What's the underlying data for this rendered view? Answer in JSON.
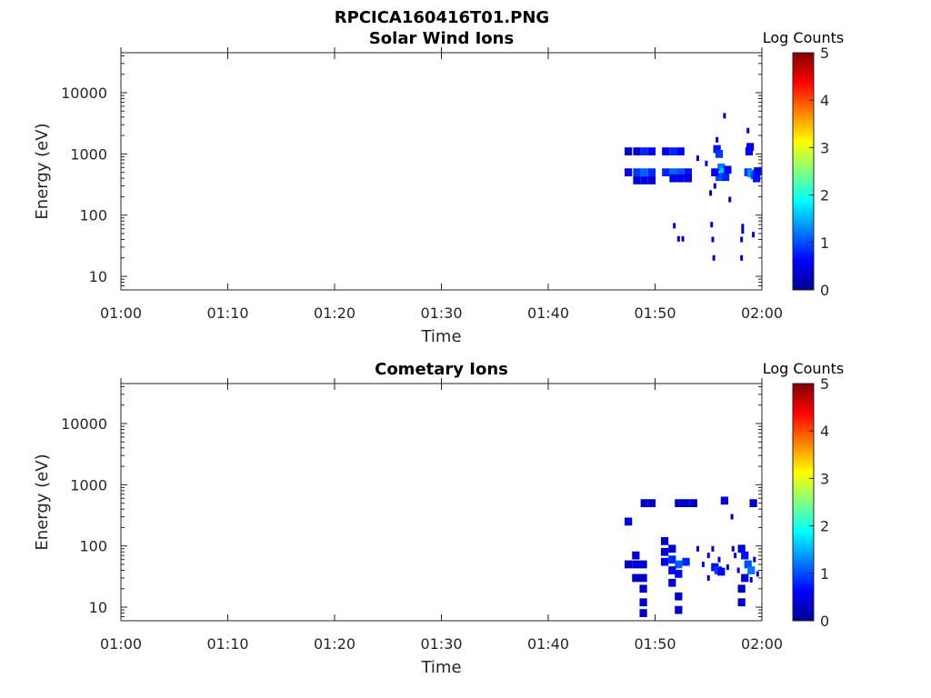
{
  "figure_title": "RPCICA160416T01.PNG",
  "colormap": [
    "#00008f",
    "#0000ff",
    "#0080ff",
    "#00ffff",
    "#80ff80",
    "#ffff00",
    "#ff8000",
    "#ff0000",
    "#800000"
  ],
  "chart_data": [
    {
      "type": "heatmap",
      "title": "Solar Wind Ions",
      "xlabel": "Time",
      "ylabel": "Energy (eV)",
      "x_ticks": [
        "01:00",
        "01:10",
        "01:20",
        "01:30",
        "01:40",
        "01:50",
        "02:00"
      ],
      "xlim": [
        "01:00",
        "02:00"
      ],
      "y_scale": "log",
      "ylim": [
        6,
        45000
      ],
      "y_ticks": [
        "10",
        "100",
        "1000",
        "10000"
      ],
      "colorbar": {
        "label": "Log Counts",
        "range": [
          0,
          5
        ],
        "ticks": [
          "0",
          "1",
          "2",
          "3",
          "4",
          "5"
        ]
      },
      "cells": [
        {
          "t": "01:47.5",
          "e": 1100,
          "v": 0.4
        },
        {
          "t": "01:48.3",
          "e": 1100,
          "v": 0.4
        },
        {
          "t": "01:49.0",
          "e": 1100,
          "v": 0.8
        },
        {
          "t": "01:49.7",
          "e": 1100,
          "v": 0.6
        },
        {
          "t": "01:47.5",
          "e": 500,
          "v": 0.6
        },
        {
          "t": "01:48.3",
          "e": 500,
          "v": 0.9
        },
        {
          "t": "01:49.0",
          "e": 500,
          "v": 1.1
        },
        {
          "t": "01:49.7",
          "e": 500,
          "v": 0.8
        },
        {
          "t": "01:48.3",
          "e": 370,
          "v": 0.4
        },
        {
          "t": "01:49.0",
          "e": 370,
          "v": 0.5
        },
        {
          "t": "01:49.7",
          "e": 370,
          "v": 0.4
        },
        {
          "t": "01:51.0",
          "e": 1100,
          "v": 0.6
        },
        {
          "t": "01:51.7",
          "e": 1100,
          "v": 0.8
        },
        {
          "t": "01:52.4",
          "e": 1100,
          "v": 0.6
        },
        {
          "t": "01:51.0",
          "e": 500,
          "v": 0.8
        },
        {
          "t": "01:51.7",
          "e": 500,
          "v": 1.1
        },
        {
          "t": "01:52.4",
          "e": 500,
          "v": 1.0
        },
        {
          "t": "01:53.1",
          "e": 500,
          "v": 0.7
        },
        {
          "t": "01:51.7",
          "e": 400,
          "v": 0.5
        },
        {
          "t": "01:52.4",
          "e": 400,
          "v": 0.5
        },
        {
          "t": "01:53.1",
          "e": 400,
          "v": 0.4
        },
        {
          "t": "01:55.8",
          "e": 1200,
          "v": 0.7
        },
        {
          "t": "01:56.0",
          "e": 1000,
          "v": 0.9
        },
        {
          "t": "01:56.2",
          "e": 600,
          "v": 1.2
        },
        {
          "t": "01:56.4",
          "e": 500,
          "v": 1.6
        },
        {
          "t": "01:56.0",
          "e": 420,
          "v": 1.0
        },
        {
          "t": "01:56.6",
          "e": 420,
          "v": 0.8
        },
        {
          "t": "01:55.6",
          "e": 500,
          "v": 0.5
        },
        {
          "t": "01:56.8",
          "e": 550,
          "v": 0.6
        },
        {
          "t": "01:58.8",
          "e": 1100,
          "v": 0.6
        },
        {
          "t": "01:58.9",
          "e": 1300,
          "v": 0.5
        },
        {
          "t": "01:58.7",
          "e": 500,
          "v": 0.9
        },
        {
          "t": "01:59.0",
          "e": 480,
          "v": 1.4
        },
        {
          "t": "01:59.3",
          "e": 450,
          "v": 1.0
        },
        {
          "t": "01:59.5",
          "e": 400,
          "v": 0.7
        },
        {
          "t": "01:59.6",
          "e": 520,
          "v": 0.6
        }
      ],
      "scatter": [
        {
          "t": "01:56.5",
          "e": 4200,
          "v": 0.3
        },
        {
          "t": "01:58.7",
          "e": 2400,
          "v": 0.3
        },
        {
          "t": "01:55.8",
          "e": 1700,
          "v": 0.3
        },
        {
          "t": "01:54.0",
          "e": 850,
          "v": 0.3
        },
        {
          "t": "01:54.8",
          "e": 700,
          "v": 0.3
        },
        {
          "t": "01:55.2",
          "e": 230,
          "v": 0.3
        },
        {
          "t": "01:57.0",
          "e": 180,
          "v": 0.3
        },
        {
          "t": "01:55.6",
          "e": 300,
          "v": 0.3
        },
        {
          "t": "01:51.8",
          "e": 67,
          "v": 0.4
        },
        {
          "t": "01:55.3",
          "e": 70,
          "v": 0.3
        },
        {
          "t": "01:52.2",
          "e": 41,
          "v": 0.3
        },
        {
          "t": "01:52.6",
          "e": 41,
          "v": 0.3
        },
        {
          "t": "01:55.4",
          "e": 40,
          "v": 0.3
        },
        {
          "t": "01:55.5",
          "e": 20,
          "v": 0.3
        },
        {
          "t": "01:58.2",
          "e": 65,
          "v": 0.3
        },
        {
          "t": "01:58.2",
          "e": 55,
          "v": 0.3
        },
        {
          "t": "01:58.1",
          "e": 40,
          "v": 0.3
        },
        {
          "t": "01:59.2",
          "e": 48,
          "v": 0.3
        },
        {
          "t": "01:58.1",
          "e": 20,
          "v": 0.3
        }
      ]
    },
    {
      "type": "heatmap",
      "title": "Cometary Ions",
      "xlabel": "Time",
      "ylabel": "Energy (eV)",
      "x_ticks": [
        "01:00",
        "01:10",
        "01:20",
        "01:30",
        "01:40",
        "01:50",
        "02:00"
      ],
      "xlim": [
        "01:00",
        "02:00"
      ],
      "y_scale": "log",
      "ylim": [
        6,
        45000
      ],
      "y_ticks": [
        "10",
        "100",
        "1000",
        "10000"
      ],
      "colorbar": {
        "label": "Log Counts",
        "range": [
          0,
          5
        ],
        "ticks": [
          "0",
          "1",
          "2",
          "3",
          "4",
          "5"
        ]
      },
      "cells": [
        {
          "t": "01:49.0",
          "e": 500,
          "v": 0.3
        },
        {
          "t": "01:49.7",
          "e": 500,
          "v": 0.3
        },
        {
          "t": "01:52.2",
          "e": 500,
          "v": 0.3
        },
        {
          "t": "01:52.9",
          "e": 500,
          "v": 0.3
        },
        {
          "t": "01:53.6",
          "e": 500,
          "v": 0.3
        },
        {
          "t": "01:56.5",
          "e": 550,
          "v": 0.4
        },
        {
          "t": "01:59.2",
          "e": 500,
          "v": 0.3
        },
        {
          "t": "01:47.5",
          "e": 250,
          "v": 0.4
        },
        {
          "t": "01:47.5",
          "e": 50,
          "v": 0.3
        },
        {
          "t": "01:48.2",
          "e": 50,
          "v": 0.4
        },
        {
          "t": "01:48.2",
          "e": 70,
          "v": 0.3
        },
        {
          "t": "01:48.9",
          "e": 50,
          "v": 0.3
        },
        {
          "t": "01:48.2",
          "e": 30,
          "v": 0.3
        },
        {
          "t": "01:48.9",
          "e": 30,
          "v": 0.3
        },
        {
          "t": "01:48.9",
          "e": 20,
          "v": 0.3
        },
        {
          "t": "01:48.9",
          "e": 12,
          "v": 0.3
        },
        {
          "t": "01:48.9",
          "e": 8,
          "v": 0.3
        },
        {
          "t": "01:50.9",
          "e": 120,
          "v": 0.3
        },
        {
          "t": "01:50.9",
          "e": 80,
          "v": 0.4
        },
        {
          "t": "01:50.9",
          "e": 55,
          "v": 0.5
        },
        {
          "t": "01:51.6",
          "e": 90,
          "v": 0.4
        },
        {
          "t": "01:51.6",
          "e": 60,
          "v": 0.8
        },
        {
          "t": "01:52.2",
          "e": 50,
          "v": 1.1
        },
        {
          "t": "01:52.9",
          "e": 55,
          "v": 0.8
        },
        {
          "t": "01:51.6",
          "e": 40,
          "v": 0.6
        },
        {
          "t": "01:52.2",
          "e": 35,
          "v": 0.5
        },
        {
          "t": "01:51.6",
          "e": 25,
          "v": 0.4
        },
        {
          "t": "01:52.2",
          "e": 15,
          "v": 0.3
        },
        {
          "t": "01:52.2",
          "e": 9,
          "v": 0.3
        },
        {
          "t": "01:55.6",
          "e": 45,
          "v": 0.7
        },
        {
          "t": "01:55.9",
          "e": 40,
          "v": 0.9
        },
        {
          "t": "01:56.2",
          "e": 38,
          "v": 0.6
        },
        {
          "t": "01:58.1",
          "e": 90,
          "v": 0.4
        },
        {
          "t": "01:58.4",
          "e": 70,
          "v": 0.7
        },
        {
          "t": "01:58.7",
          "e": 50,
          "v": 1.0
        },
        {
          "t": "01:59.0",
          "e": 40,
          "v": 1.2
        },
        {
          "t": "01:58.4",
          "e": 30,
          "v": 0.5
        },
        {
          "t": "01:58.1",
          "e": 20,
          "v": 0.3
        },
        {
          "t": "01:58.1",
          "e": 12,
          "v": 0.3
        }
      ],
      "scatter": [
        {
          "t": "01:57.2",
          "e": 300,
          "v": 0.3
        },
        {
          "t": "01:54.0",
          "e": 90,
          "v": 0.3
        },
        {
          "t": "01:55.0",
          "e": 70,
          "v": 0.3
        },
        {
          "t": "01:55.4",
          "e": 90,
          "v": 0.3
        },
        {
          "t": "01:56.0",
          "e": 60,
          "v": 0.3
        },
        {
          "t": "01:57.3",
          "e": 90,
          "v": 0.3
        },
        {
          "t": "01:57.5",
          "e": 70,
          "v": 0.3
        },
        {
          "t": "01:54.5",
          "e": 50,
          "v": 0.3
        },
        {
          "t": "01:55.0",
          "e": 30,
          "v": 0.3
        },
        {
          "t": "01:56.8",
          "e": 45,
          "v": 0.3
        },
        {
          "t": "01:57.8",
          "e": 40,
          "v": 0.3
        },
        {
          "t": "01:59.3",
          "e": 60,
          "v": 0.3
        },
        {
          "t": "01:59.6",
          "e": 35,
          "v": 0.3
        },
        {
          "t": "01:59.0",
          "e": 28,
          "v": 0.3
        }
      ]
    }
  ]
}
